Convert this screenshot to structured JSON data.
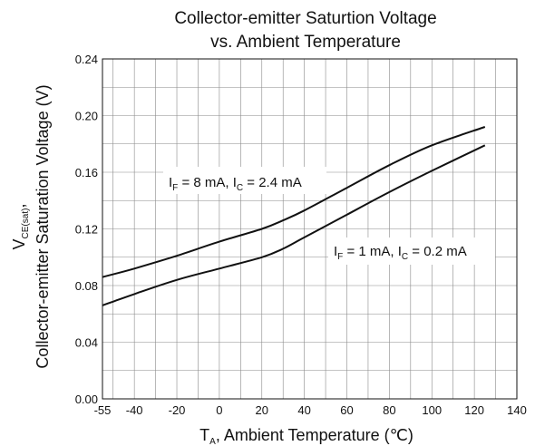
{
  "chart_data": {
    "type": "line",
    "title_line1": "Collector-emitter Saturtion Voltage",
    "title_line2": "vs. Ambient Temperature",
    "xlabel": {
      "main": "T",
      "sub": "A",
      "rest": ", Ambient Temperature (℃)"
    },
    "ylabel": {
      "line1_main": "V",
      "line1_sub": "CE(sat)",
      "line1_rest": ",",
      "line2": "Collector-emitter Saturation Voltage (V)"
    },
    "xlim": [
      -55,
      140
    ],
    "ylim": [
      0,
      0.24
    ],
    "xticks": [
      "-55",
      "-40",
      "-20",
      "0",
      "20",
      "40",
      "60",
      "80",
      "100",
      "120",
      "140"
    ],
    "yticks": [
      "0.00",
      "0.04",
      "0.08",
      "0.12",
      "0.16",
      "0.20",
      "0.24"
    ],
    "grid": true,
    "series": [
      {
        "name": "IF = 8 mA, IC = 2.4 mA",
        "x": [
          -55,
          -40,
          -20,
          0,
          20,
          30,
          40,
          60,
          80,
          100,
          125
        ],
        "y": [
          0.086,
          0.092,
          0.101,
          0.111,
          0.12,
          0.126,
          0.133,
          0.149,
          0.165,
          0.179,
          0.192
        ]
      },
      {
        "name": "IF = 1 mA, IC = 0.2 mA",
        "x": [
          -55,
          -40,
          -20,
          0,
          20,
          30,
          40,
          60,
          80,
          100,
          125
        ],
        "y": [
          0.066,
          0.074,
          0.084,
          0.092,
          0.1,
          0.106,
          0.114,
          0.13,
          0.146,
          0.161,
          0.179
        ]
      }
    ],
    "annotations": [
      {
        "parts": [
          "I",
          "F",
          " = 8 mA, I",
          "C",
          " = 2.4 mA"
        ]
      },
      {
        "parts": [
          "I",
          "F",
          " = 1 mA, I",
          "C",
          " = 0.2 mA"
        ]
      }
    ]
  }
}
